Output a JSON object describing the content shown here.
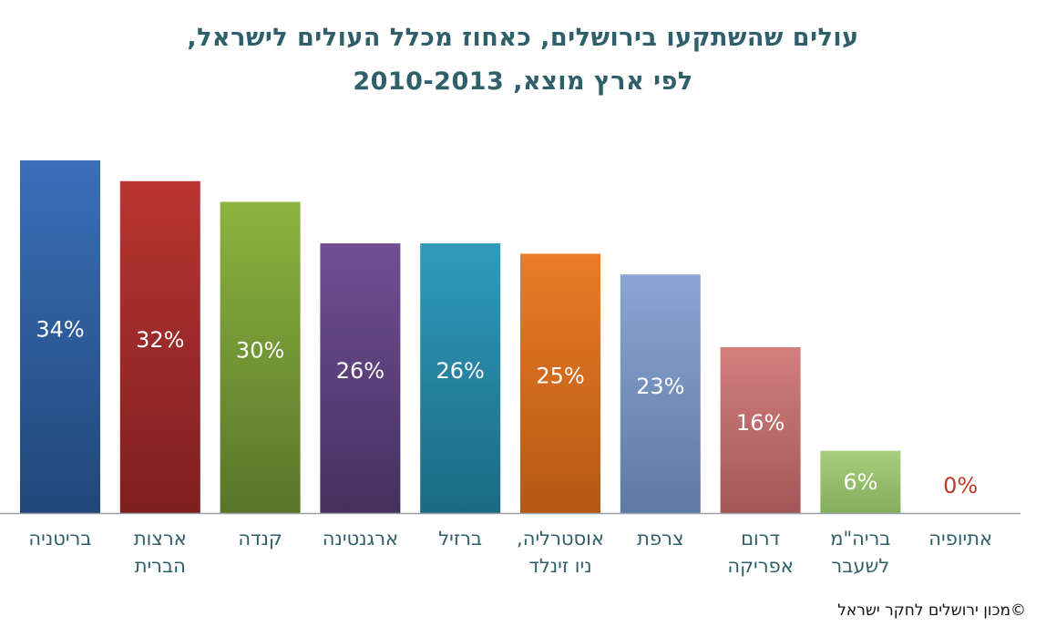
{
  "chart_data": {
    "type": "bar",
    "title_line1": "עולים שהשתקעו בירושלים, כאחוז מכלל העולים לישראל,",
    "title_line2": "לפי ארץ מוצא, 2010-2013",
    "categories": [
      "בריטניה",
      "ארצות הברית",
      "קנדה",
      "ארגנטינה",
      "ברזיל",
      "אוסטרליה, ניו זינלד",
      "צרפת",
      "דרום אפריקה",
      "בריה\"מ לשעבר",
      "אתיופיה"
    ],
    "category_lines": [
      [
        "בריטניה"
      ],
      [
        "ארצות",
        "הברית"
      ],
      [
        "קנדה"
      ],
      [
        "ארגנטינה"
      ],
      [
        "ברזיל"
      ],
      [
        "אוסטרליה,",
        "ניו זינלד"
      ],
      [
        "צרפת"
      ],
      [
        "דרום",
        "אפריקה"
      ],
      [
        "בריה\"מ",
        "לשעבר"
      ],
      [
        "אתיופיה"
      ]
    ],
    "values": [
      34,
      32,
      30,
      26,
      26,
      25,
      23,
      16,
      6,
      0
    ],
    "data_labels": [
      "34%",
      "32%",
      "30%",
      "26%",
      "26%",
      "25%",
      "23%",
      "16%",
      "6%",
      "0%"
    ],
    "colors": [
      "#3a6fb8",
      "#b93533",
      "#8cb43f",
      "#704f94",
      "#2f9bbd",
      "#ec7c25",
      "#8ca5d4",
      "#d37f7e",
      "#a9cd7d",
      "#c0392b"
    ],
    "color_dark": [
      "#21477a",
      "#7e1f1e",
      "#58762a",
      "#46305f",
      "#1b6a83",
      "#b45814",
      "#5d7aa4",
      "#a35756",
      "#84ad5c",
      "#c0392b"
    ],
    "ylim": [
      0,
      35
    ],
    "xlabel": "",
    "ylabel": "",
    "grid": false
  },
  "copyright": "©מכון ירושלים לחקר ישראל"
}
